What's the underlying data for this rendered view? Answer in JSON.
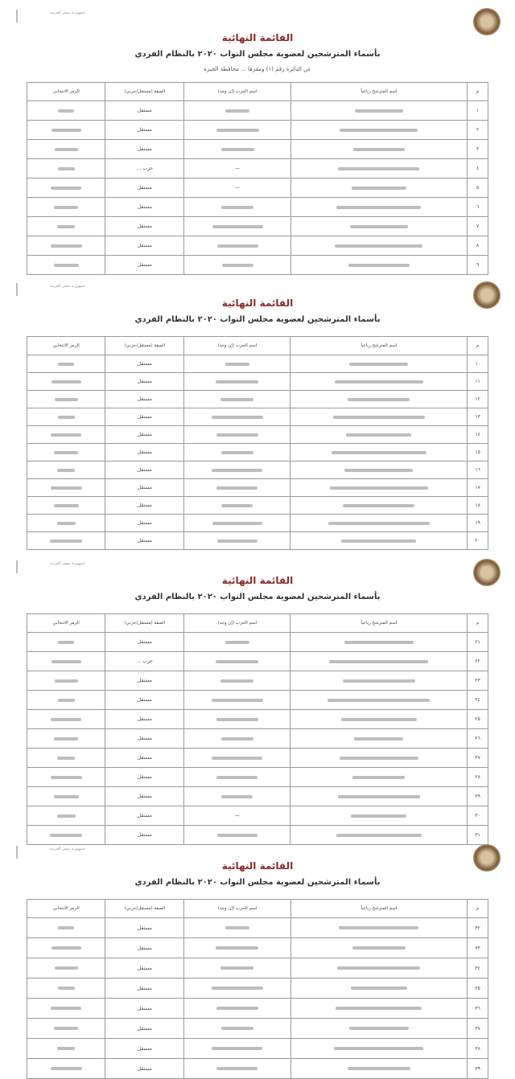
{
  "document": {
    "title": "القائمة النهائية",
    "subtitle": "بأسماء المترشحين لعضوية مجلس النواب ٢٠٢٠ بالنظام الفردي",
    "district_line": "عن الدائرة رقم (١) ومقرها ... محافظة الجيزة",
    "stamp_text": "جمهورية مصر العربية",
    "columns": [
      "م",
      "اسم المترشح رباعياً",
      "اسم الحزب (إن وجد)",
      "الصفة (مستقل/حزبي)",
      "الرمز الانتخابي"
    ],
    "pages": [
      {
        "rows": [
          {
            "n": "١",
            "party": "",
            "status": "مستقل"
          },
          {
            "n": "٢",
            "party": "",
            "status": "مستقل"
          },
          {
            "n": "٣",
            "party": "",
            "status": "مستقل"
          },
          {
            "n": "٤",
            "party": "—",
            "status": "حزب ..."
          },
          {
            "n": "٥",
            "party": "—",
            "status": "مستقل"
          },
          {
            "n": "٦",
            "party": "",
            "status": "مستقل"
          },
          {
            "n": "٧",
            "party": "",
            "status": "مستقل"
          },
          {
            "n": "٨",
            "party": "",
            "status": "مستقل"
          },
          {
            "n": "٩",
            "party": "",
            "status": "مستقل"
          }
        ]
      },
      {
        "rows": [
          {
            "n": "١٠",
            "party": "",
            "status": "مستقل"
          },
          {
            "n": "١١",
            "party": "",
            "status": "مستقل"
          },
          {
            "n": "١٢",
            "party": "",
            "status": "مستقل"
          },
          {
            "n": "١٣",
            "party": "",
            "status": "مستقل"
          },
          {
            "n": "١٤",
            "party": "",
            "status": "مستقل"
          },
          {
            "n": "١٥",
            "party": "",
            "status": "مستقل"
          },
          {
            "n": "١٦",
            "party": "",
            "status": "مستقل"
          },
          {
            "n": "١٧",
            "party": "",
            "status": "مستقل"
          },
          {
            "n": "١٨",
            "party": "",
            "status": "مستقل"
          },
          {
            "n": "١٩",
            "party": "",
            "status": "مستقل"
          },
          {
            "n": "٢٠",
            "party": "",
            "status": "مستقل"
          }
        ]
      },
      {
        "rows": [
          {
            "n": "٢١",
            "party": "",
            "status": "مستقل"
          },
          {
            "n": "٢٢",
            "party": "",
            "status": "حزب ..."
          },
          {
            "n": "٢٣",
            "party": "",
            "status": "مستقل"
          },
          {
            "n": "٢٤",
            "party": "",
            "status": "مستقل"
          },
          {
            "n": "٢٥",
            "party": "",
            "status": "مستقل"
          },
          {
            "n": "٢٦",
            "party": "",
            "status": "مستقل"
          },
          {
            "n": "٢٧",
            "party": "",
            "status": "مستقل"
          },
          {
            "n": "٢٨",
            "party": "",
            "status": "مستقل"
          },
          {
            "n": "٢٩",
            "party": "",
            "status": "مستقل"
          },
          {
            "n": "٣٠",
            "party": "—",
            "status": "مستقل"
          },
          {
            "n": "٣١",
            "party": "",
            "status": "مستقل"
          }
        ]
      },
      {
        "rows": [
          {
            "n": "٣٢",
            "party": "",
            "status": "مستقل"
          },
          {
            "n": "٣٣",
            "party": "",
            "status": "مستقل"
          },
          {
            "n": "٣٤",
            "party": "",
            "status": "مستقل"
          },
          {
            "n": "٣٥",
            "party": "",
            "status": "مستقل"
          },
          {
            "n": "٣٦",
            "party": "",
            "status": "مستقل"
          },
          {
            "n": "٣٧",
            "party": "",
            "status": "مستقل"
          },
          {
            "n": "٣٨",
            "party": "",
            "status": "مستقل"
          },
          {
            "n": "٣٩",
            "party": "",
            "status": "مستقل"
          }
        ]
      }
    ]
  }
}
